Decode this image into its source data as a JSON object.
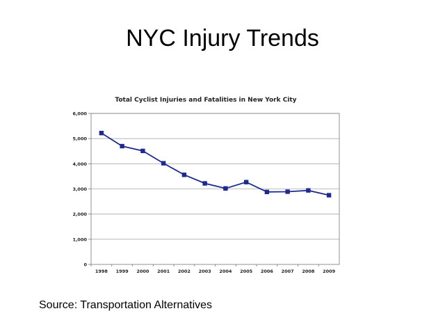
{
  "slide": {
    "title": "NYC Injury Trends",
    "source": "Source: Transportation Alternatives"
  },
  "colors": {
    "series": "#1f2a8c",
    "grid": "#aaaaaa",
    "axis": "#777777"
  },
  "chart_data": {
    "type": "line",
    "title": "Total Cyclist Injuries and Fatalities in New York City",
    "xlabel": "",
    "ylabel": "",
    "categories": [
      "1998",
      "1999",
      "2000",
      "2001",
      "2002",
      "2003",
      "2004",
      "2005",
      "2006",
      "2007",
      "2008",
      "2009"
    ],
    "series": [
      {
        "values": [
          5220,
          4700,
          4510,
          4020,
          3560,
          3220,
          3020,
          3270,
          2880,
          2890,
          2940,
          2750
        ]
      }
    ],
    "ylim": [
      0,
      6000
    ],
    "yticks": [
      0,
      1000,
      2000,
      3000,
      4000,
      5000,
      6000
    ],
    "ytick_labels": [
      "0",
      "1,000",
      "2,000",
      "3,000",
      "4,000",
      "5,000",
      "6,000"
    ],
    "grid": true,
    "marker": "square",
    "legend": "none"
  }
}
